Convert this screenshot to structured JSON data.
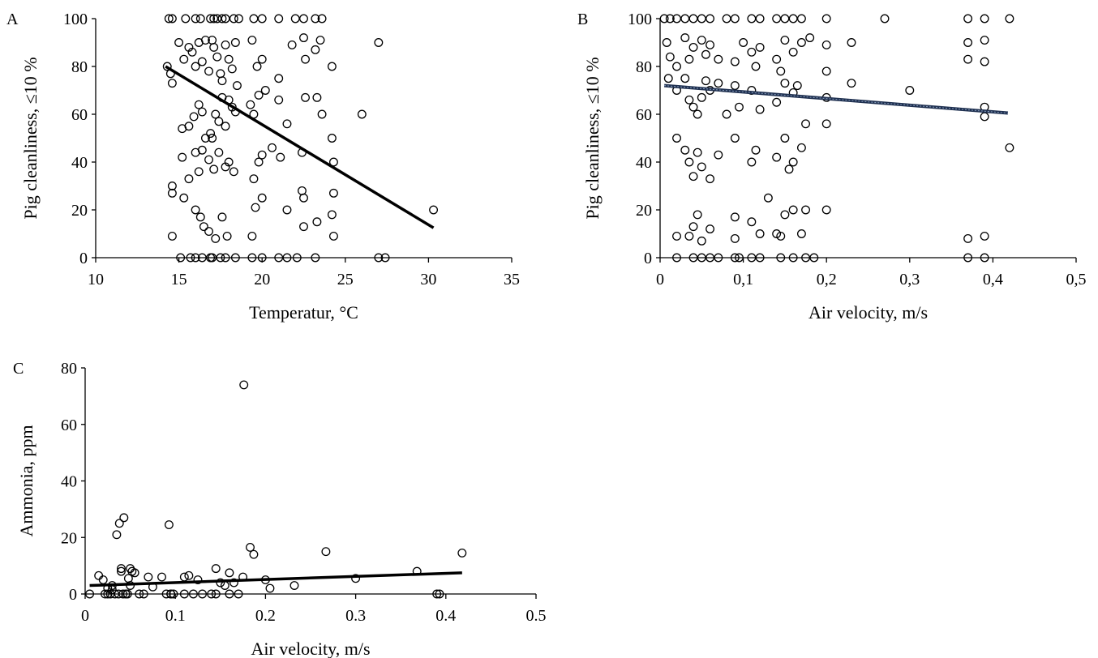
{
  "chart_data": [
    {
      "panel": "A",
      "type": "scatter",
      "xlabel": "Temperatur, °C",
      "ylabel": "Pig cleanliness, ≤10 %",
      "xlim": [
        10,
        35
      ],
      "ylim": [
        0,
        100
      ],
      "xticks": [
        "10",
        "15",
        "20",
        "25",
        "30",
        "35"
      ],
      "yticks": [
        "0",
        "20",
        "40",
        "60",
        "80",
        "100"
      ],
      "grid": false,
      "trendline": {
        "x": [
          14.2,
          30.3
        ],
        "y": [
          80,
          12.5
        ],
        "color": "#000000"
      },
      "points": [
        [
          14.4,
          100
        ],
        [
          14.6,
          100
        ],
        [
          15.4,
          100
        ],
        [
          16.0,
          100
        ],
        [
          16.3,
          100
        ],
        [
          16.9,
          100
        ],
        [
          17.1,
          100
        ],
        [
          17.3,
          100
        ],
        [
          17.6,
          100
        ],
        [
          17.8,
          100
        ],
        [
          18.3,
          100
        ],
        [
          18.6,
          100
        ],
        [
          19.5,
          100
        ],
        [
          20.0,
          100
        ],
        [
          21.0,
          100
        ],
        [
          22.0,
          100
        ],
        [
          22.5,
          100
        ],
        [
          23.2,
          100
        ],
        [
          23.6,
          100
        ],
        [
          14.3,
          80
        ],
        [
          14.5,
          77
        ],
        [
          14.6,
          73
        ],
        [
          15.0,
          90
        ],
        [
          15.3,
          83
        ],
        [
          15.6,
          88
        ],
        [
          15.8,
          86
        ],
        [
          16.0,
          80
        ],
        [
          16.2,
          90
        ],
        [
          16.4,
          82
        ],
        [
          16.6,
          91
        ],
        [
          16.8,
          78
        ],
        [
          17.0,
          91
        ],
        [
          17.1,
          88
        ],
        [
          17.3,
          84
        ],
        [
          17.5,
          77
        ],
        [
          17.6,
          74
        ],
        [
          17.8,
          89
        ],
        [
          18.0,
          83
        ],
        [
          18.2,
          79
        ],
        [
          18.4,
          90
        ],
        [
          18.5,
          72
        ],
        [
          19.4,
          91
        ],
        [
          19.7,
          80
        ],
        [
          20.0,
          83
        ],
        [
          21.0,
          75
        ],
        [
          21.8,
          89
        ],
        [
          22.5,
          92
        ],
        [
          22.6,
          83
        ],
        [
          23.2,
          87
        ],
        [
          23.5,
          91
        ],
        [
          24.2,
          80
        ],
        [
          27.0,
          90
        ],
        [
          15.2,
          54
        ],
        [
          15.6,
          55
        ],
        [
          15.9,
          59
        ],
        [
          16.2,
          64
        ],
        [
          16.4,
          61
        ],
        [
          16.6,
          50
        ],
        [
          16.9,
          52
        ],
        [
          17.0,
          50
        ],
        [
          17.2,
          60
        ],
        [
          17.4,
          57
        ],
        [
          17.6,
          67
        ],
        [
          17.8,
          55
        ],
        [
          18.0,
          66
        ],
        [
          18.2,
          63
        ],
        [
          18.4,
          61
        ],
        [
          19.3,
          64
        ],
        [
          19.5,
          60
        ],
        [
          19.8,
          68
        ],
        [
          20.2,
          70
        ],
        [
          21.0,
          66
        ],
        [
          21.5,
          56
        ],
        [
          22.6,
          67
        ],
        [
          23.3,
          67
        ],
        [
          23.6,
          60
        ],
        [
          24.2,
          50
        ],
        [
          26.0,
          60
        ],
        [
          14.6,
          30
        ],
        [
          14.6,
          27
        ],
        [
          15.2,
          42
        ],
        [
          15.3,
          25
        ],
        [
          15.6,
          33
        ],
        [
          16.0,
          44
        ],
        [
          16.2,
          36
        ],
        [
          16.4,
          45
        ],
        [
          16.8,
          41
        ],
        [
          17.1,
          37
        ],
        [
          17.4,
          44
        ],
        [
          17.8,
          38
        ],
        [
          18.0,
          40
        ],
        [
          18.3,
          36
        ],
        [
          19.5,
          33
        ],
        [
          19.8,
          40
        ],
        [
          20.0,
          43
        ],
        [
          20.6,
          46
        ],
        [
          21.1,
          42
        ],
        [
          22.4,
          44
        ],
        [
          22.4,
          28
        ],
        [
          22.5,
          25
        ],
        [
          24.3,
          40
        ],
        [
          24.3,
          27
        ],
        [
          14.6,
          9
        ],
        [
          16.0,
          20
        ],
        [
          16.3,
          17
        ],
        [
          16.5,
          13
        ],
        [
          16.8,
          11
        ],
        [
          17.2,
          8
        ],
        [
          17.6,
          17
        ],
        [
          17.9,
          9
        ],
        [
          19.4,
          9
        ],
        [
          19.6,
          21
        ],
        [
          20.0,
          25
        ],
        [
          21.5,
          20
        ],
        [
          22.5,
          13
        ],
        [
          23.3,
          15
        ],
        [
          24.2,
          18
        ],
        [
          24.3,
          9
        ],
        [
          30.3,
          20
        ],
        [
          15.1,
          0
        ],
        [
          15.7,
          0
        ],
        [
          16.0,
          0
        ],
        [
          16.4,
          0
        ],
        [
          16.9,
          0
        ],
        [
          17.0,
          0
        ],
        [
          17.5,
          0
        ],
        [
          17.8,
          0
        ],
        [
          18.4,
          0
        ],
        [
          19.4,
          0
        ],
        [
          20.0,
          0
        ],
        [
          21.0,
          0
        ],
        [
          21.5,
          0
        ],
        [
          22.1,
          0
        ],
        [
          23.2,
          0
        ],
        [
          27.0,
          0
        ],
        [
          27.4,
          0
        ]
      ]
    },
    {
      "panel": "B",
      "type": "scatter",
      "xlabel": "Air velocity, m/s",
      "ylabel": "Pig cleanliness, ≤10 %",
      "xlim": [
        0,
        0.5
      ],
      "ylim": [
        0,
        100
      ],
      "xticks": [
        "0",
        "0,1",
        "0,2",
        "0,3",
        "0,4",
        "0,5"
      ],
      "yticks": [
        "0",
        "20",
        "40",
        "60",
        "80",
        "100"
      ],
      "grid": false,
      "trendline": {
        "x": [
          0.005,
          0.418
        ],
        "y": [
          72,
          60.5
        ],
        "color": "#1f3050"
      },
      "points": [
        [
          0.005,
          100
        ],
        [
          0.012,
          100
        ],
        [
          0.02,
          100
        ],
        [
          0.03,
          100
        ],
        [
          0.04,
          100
        ],
        [
          0.05,
          100
        ],
        [
          0.06,
          100
        ],
        [
          0.08,
          100
        ],
        [
          0.09,
          100
        ],
        [
          0.11,
          100
        ],
        [
          0.12,
          100
        ],
        [
          0.14,
          100
        ],
        [
          0.15,
          100
        ],
        [
          0.16,
          100
        ],
        [
          0.17,
          100
        ],
        [
          0.2,
          100
        ],
        [
          0.27,
          100
        ],
        [
          0.37,
          100
        ],
        [
          0.39,
          100
        ],
        [
          0.42,
          100
        ],
        [
          0.008,
          90
        ],
        [
          0.012,
          84
        ],
        [
          0.02,
          80
        ],
        [
          0.03,
          92
        ],
        [
          0.035,
          83
        ],
        [
          0.04,
          88
        ],
        [
          0.05,
          91
        ],
        [
          0.055,
          85
        ],
        [
          0.06,
          89
        ],
        [
          0.07,
          83
        ],
        [
          0.09,
          82
        ],
        [
          0.1,
          90
        ],
        [
          0.11,
          86
        ],
        [
          0.115,
          80
        ],
        [
          0.12,
          88
        ],
        [
          0.14,
          83
        ],
        [
          0.145,
          78
        ],
        [
          0.15,
          91
        ],
        [
          0.16,
          86
        ],
        [
          0.17,
          90
        ],
        [
          0.18,
          92
        ],
        [
          0.2,
          89
        ],
        [
          0.23,
          90
        ],
        [
          0.37,
          90
        ],
        [
          0.37,
          83
        ],
        [
          0.39,
          91
        ],
        [
          0.39,
          82
        ],
        [
          0.01,
          75
        ],
        [
          0.02,
          70
        ],
        [
          0.03,
          75
        ],
        [
          0.035,
          66
        ],
        [
          0.04,
          63
        ],
        [
          0.045,
          60
        ],
        [
          0.05,
          67
        ],
        [
          0.055,
          74
        ],
        [
          0.06,
          70
        ],
        [
          0.07,
          73
        ],
        [
          0.08,
          60
        ],
        [
          0.09,
          72
        ],
        [
          0.095,
          63
        ],
        [
          0.11,
          70
        ],
        [
          0.12,
          62
        ],
        [
          0.14,
          65
        ],
        [
          0.15,
          73
        ],
        [
          0.16,
          69
        ],
        [
          0.165,
          72
        ],
        [
          0.2,
          78
        ],
        [
          0.23,
          73
        ],
        [
          0.3,
          70
        ],
        [
          0.2,
          67
        ],
        [
          0.39,
          63
        ],
        [
          0.39,
          59
        ],
        [
          0.02,
          50
        ],
        [
          0.03,
          45
        ],
        [
          0.035,
          40
        ],
        [
          0.04,
          34
        ],
        [
          0.045,
          44
        ],
        [
          0.05,
          38
        ],
        [
          0.06,
          33
        ],
        [
          0.07,
          43
        ],
        [
          0.09,
          50
        ],
        [
          0.11,
          40
        ],
        [
          0.115,
          45
        ],
        [
          0.14,
          42
        ],
        [
          0.15,
          50
        ],
        [
          0.155,
          37
        ],
        [
          0.16,
          40
        ],
        [
          0.17,
          46
        ],
        [
          0.175,
          56
        ],
        [
          0.2,
          56
        ],
        [
          0.42,
          46
        ],
        [
          0.02,
          9
        ],
        [
          0.035,
          9
        ],
        [
          0.04,
          13
        ],
        [
          0.045,
          18
        ],
        [
          0.05,
          7
        ],
        [
          0.06,
          12
        ],
        [
          0.09,
          17
        ],
        [
          0.09,
          8
        ],
        [
          0.11,
          15
        ],
        [
          0.12,
          10
        ],
        [
          0.13,
          25
        ],
        [
          0.14,
          10
        ],
        [
          0.145,
          9
        ],
        [
          0.15,
          18
        ],
        [
          0.16,
          20
        ],
        [
          0.17,
          10
        ],
        [
          0.175,
          20
        ],
        [
          0.2,
          20
        ],
        [
          0.37,
          8
        ],
        [
          0.39,
          9
        ],
        [
          0.02,
          0
        ],
        [
          0.04,
          0
        ],
        [
          0.05,
          0
        ],
        [
          0.06,
          0
        ],
        [
          0.07,
          0
        ],
        [
          0.09,
          0
        ],
        [
          0.095,
          0
        ],
        [
          0.11,
          0
        ],
        [
          0.12,
          0
        ],
        [
          0.145,
          0
        ],
        [
          0.16,
          0
        ],
        [
          0.175,
          0
        ],
        [
          0.185,
          0
        ],
        [
          0.37,
          0
        ],
        [
          0.39,
          0
        ]
      ]
    },
    {
      "panel": "C",
      "type": "scatter",
      "xlabel": "Air velocity, m/s",
      "ylabel": "Ammonia, ppm",
      "xlim": [
        0,
        0.5
      ],
      "ylim": [
        0,
        80
      ],
      "xticks": [
        "0",
        "0.1",
        "0.2",
        "0.3",
        "0.4",
        "0.5"
      ],
      "yticks": [
        "0",
        "20",
        "40",
        "60",
        "80"
      ],
      "grid": false,
      "trendline": {
        "x": [
          0.005,
          0.418
        ],
        "y": [
          3,
          7.5
        ],
        "color": "#000000"
      },
      "points": [
        [
          0.005,
          0
        ],
        [
          0.015,
          6.5
        ],
        [
          0.02,
          5
        ],
        [
          0.025,
          0
        ],
        [
          0.03,
          3
        ],
        [
          0.035,
          21
        ],
        [
          0.038,
          25
        ],
        [
          0.04,
          9
        ],
        [
          0.04,
          8
        ],
        [
          0.043,
          27
        ],
        [
          0.045,
          0
        ],
        [
          0.048,
          5.5
        ],
        [
          0.05,
          9
        ],
        [
          0.052,
          8
        ],
        [
          0.055,
          7.5
        ],
        [
          0.06,
          0
        ],
        [
          0.07,
          6
        ],
        [
          0.075,
          2.5
        ],
        [
          0.085,
          6
        ],
        [
          0.09,
          0
        ],
        [
          0.093,
          24.5
        ],
        [
          0.095,
          0
        ],
        [
          0.11,
          6
        ],
        [
          0.115,
          6.5
        ],
        [
          0.12,
          0
        ],
        [
          0.125,
          5
        ],
        [
          0.14,
          0
        ],
        [
          0.145,
          9
        ],
        [
          0.15,
          4
        ],
        [
          0.155,
          3
        ],
        [
          0.16,
          7.5
        ],
        [
          0.165,
          4
        ],
        [
          0.17,
          0
        ],
        [
          0.175,
          6
        ],
        [
          0.176,
          74
        ],
        [
          0.183,
          16.5
        ],
        [
          0.187,
          14
        ],
        [
          0.2,
          5
        ],
        [
          0.205,
          2
        ],
        [
          0.232,
          3
        ],
        [
          0.267,
          15
        ],
        [
          0.3,
          5.5
        ],
        [
          0.368,
          8
        ],
        [
          0.39,
          0
        ],
        [
          0.393,
          0
        ],
        [
          0.418,
          14.5
        ],
        [
          0.022,
          0
        ],
        [
          0.028,
          0
        ],
        [
          0.033,
          0
        ],
        [
          0.037,
          0
        ],
        [
          0.042,
          0
        ],
        [
          0.047,
          0
        ],
        [
          0.065,
          0
        ],
        [
          0.098,
          0
        ],
        [
          0.11,
          0
        ],
        [
          0.13,
          0
        ],
        [
          0.145,
          0
        ],
        [
          0.16,
          0
        ],
        [
          0.095,
          0
        ],
        [
          0.03,
          1.5
        ],
        [
          0.025,
          2
        ],
        [
          0.05,
          3
        ]
      ]
    }
  ]
}
